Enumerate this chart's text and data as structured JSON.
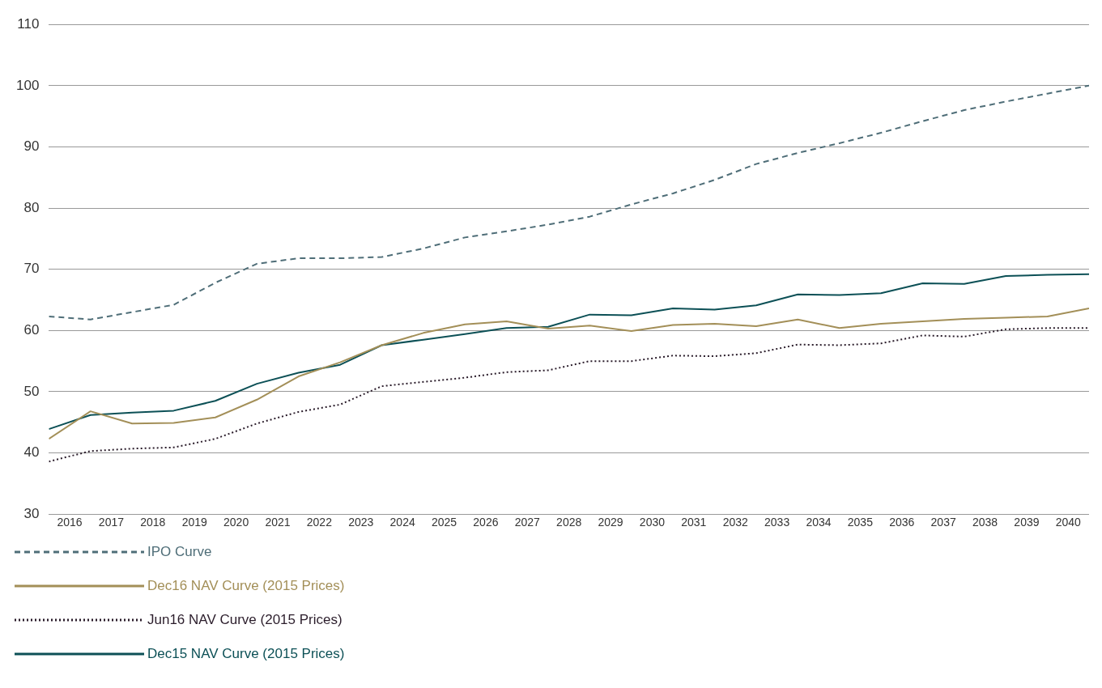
{
  "chart_data": {
    "type": "line",
    "x": [
      2015.5,
      2016.5,
      2017.5,
      2018.5,
      2019.5,
      2020.5,
      2021.5,
      2022.5,
      2023.5,
      2024.5,
      2025.5,
      2026.5,
      2027.5,
      2028.5,
      2029.5,
      2030.5,
      2031.5,
      2032.5,
      2033.5,
      2034.5,
      2035.5,
      2036.5,
      2037.5,
      2038.5,
      2039.5,
      2040.5
    ],
    "xlim": [
      2015.5,
      2040.5
    ],
    "xticks": [
      2016,
      2017,
      2018,
      2019,
      2020,
      2021,
      2022,
      2023,
      2024,
      2025,
      2026,
      2027,
      2028,
      2029,
      2030,
      2031,
      2032,
      2033,
      2034,
      2035,
      2036,
      2037,
      2038,
      2039,
      2040
    ],
    "ylim": [
      30,
      110
    ],
    "yticks": [
      30,
      40,
      50,
      60,
      70,
      80,
      90,
      100,
      110
    ],
    "grid": "y",
    "legend": "bottom left",
    "marker": "none",
    "series": [
      {
        "name": "IPO Curve",
        "color": "#4f6e78",
        "line_style": "dashed",
        "values": [
          62.3,
          61.8,
          63,
          64.2,
          67.8,
          70.9,
          71.8,
          71.8,
          72,
          73.4,
          75.2,
          76.2,
          77.3,
          78.6,
          80.6,
          82.4,
          84.6,
          87.2,
          89,
          90.6,
          92.3,
          94.2,
          96,
          97.4,
          98.7,
          100
        ]
      },
      {
        "name": "Dec16 NAV Curve (2015 Prices)",
        "color": "#a38f58",
        "line_style": "solid",
        "values": [
          42.3,
          46.8,
          44.8,
          44.9,
          45.8,
          48.7,
          52.5,
          54.8,
          57.6,
          59.6,
          61,
          61.5,
          60.3,
          60.8,
          59.9,
          60.9,
          61.1,
          60.7,
          61.8,
          60.4,
          61.1,
          61.5,
          61.9,
          62.1,
          62.3,
          63.6
        ]
      },
      {
        "name": "Jun16 NAV Curve (2015 Prices)",
        "color": "#2b1d2b",
        "line_style": "dotted",
        "values": [
          38.6,
          40.3,
          40.7,
          40.9,
          42.3,
          44.8,
          46.7,
          47.9,
          50.9,
          51.6,
          52.3,
          53.2,
          53.5,
          55,
          55,
          55.9,
          55.8,
          56.3,
          57.7,
          57.6,
          57.9,
          59.2,
          59,
          60.2,
          60.4,
          60.4
        ]
      },
      {
        "name": "Dec15 NAV Curve (2015 Prices)",
        "color": "#0c5056",
        "line_style": "solid",
        "values": [
          43.9,
          46.2,
          46.6,
          46.9,
          48.5,
          51.3,
          53.1,
          54.4,
          57.6,
          58.5,
          59.4,
          60.4,
          60.6,
          62.6,
          62.5,
          63.6,
          63.4,
          64.1,
          65.9,
          65.8,
          66.1,
          67.7,
          67.6,
          68.9,
          69.1,
          69.2
        ]
      }
    ]
  }
}
